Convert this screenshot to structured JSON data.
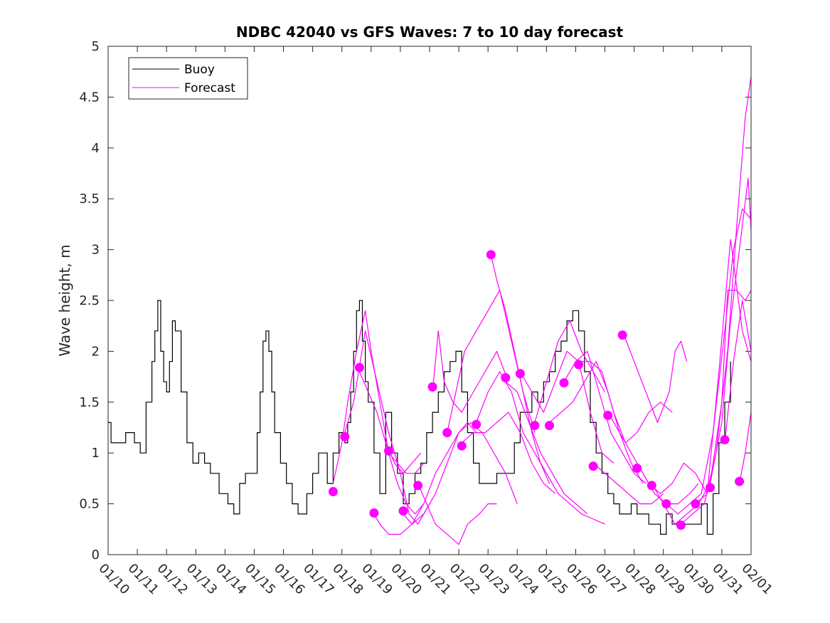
{
  "chart_data": {
    "type": "line",
    "title": "NDBC 42040 vs GFS Waves: 7 to 10 day forecast",
    "xlabel": "",
    "ylabel": "Wave height, m",
    "xlim": [
      0,
      22
    ],
    "ylim": [
      0,
      5
    ],
    "yticks": [
      0,
      0.5,
      1,
      1.5,
      2,
      2.5,
      3,
      3.5,
      4,
      4.5,
      5
    ],
    "ytick_labels": [
      "0",
      "0.5",
      "1",
      "1.5",
      "2",
      "2.5",
      "3",
      "3.5",
      "4",
      "4.5",
      "5"
    ],
    "xticks": [
      0,
      1,
      2,
      3,
      4,
      5,
      6,
      7,
      8,
      9,
      10,
      11,
      12,
      13,
      14,
      15,
      16,
      17,
      18,
      19,
      20,
      21,
      22
    ],
    "xtick_labels": [
      "01/10",
      "01/11",
      "01/12",
      "01/13",
      "01/14",
      "01/15",
      "01/16",
      "01/17",
      "01/18",
      "01/19",
      "01/20",
      "01/21",
      "01/22",
      "01/23",
      "01/24",
      "01/25",
      "01/26",
      "01/27",
      "01/28",
      "01/29",
      "01/30",
      "01/31",
      "02/01"
    ],
    "legend": {
      "location": "top-left",
      "entries": [
        {
          "label": "Buoy",
          "color": "#000000"
        },
        {
          "label": "Forecast",
          "color": "#ff00ff"
        }
      ]
    },
    "colors": {
      "buoy": "#000000",
      "forecast": "#ff00ff"
    },
    "buoy": {
      "name": "Buoy",
      "x": [
        0,
        0.1,
        0.3,
        0.6,
        0.9,
        1.1,
        1.3,
        1.5,
        1.6,
        1.7,
        1.8,
        1.9,
        2.0,
        2.1,
        2.2,
        2.3,
        2.5,
        2.7,
        2.9,
        3.1,
        3.3,
        3.5,
        3.8,
        4.1,
        4.3,
        4.5,
        4.7,
        4.9,
        5.1,
        5.2,
        5.3,
        5.4,
        5.5,
        5.6,
        5.7,
        5.9,
        6.1,
        6.3,
        6.5,
        6.8,
        7.0,
        7.2,
        7.5,
        7.7,
        7.9,
        8.1,
        8.2,
        8.3,
        8.4,
        8.5,
        8.6,
        8.7,
        8.8,
        8.9,
        9.1,
        9.3,
        9.5,
        9.7,
        9.9,
        10.1,
        10.3,
        10.5,
        10.7,
        10.9,
        11.1,
        11.3,
        11.5,
        11.7,
        11.9,
        12.1,
        12.3,
        12.5,
        12.7,
        12.9,
        13.1,
        13.3,
        13.5,
        13.7,
        13.9,
        14.1,
        14.3,
        14.5,
        14.7,
        14.9,
        15.1,
        15.3,
        15.5,
        15.7,
        15.9,
        16.1,
        16.3,
        16.5,
        16.7,
        16.9,
        17.1,
        17.3,
        17.5,
        17.7,
        17.9,
        18.1,
        18.3,
        18.5,
        18.7,
        18.9,
        19.1,
        19.3,
        19.5,
        19.7,
        19.9,
        20.1,
        20.3,
        20.5,
        20.7,
        20.9,
        21.1,
        21.3
      ],
      "y": [
        1.3,
        1.1,
        1.1,
        1.2,
        1.1,
        1.0,
        1.5,
        1.9,
        2.2,
        2.5,
        2.0,
        1.7,
        1.6,
        1.9,
        2.3,
        2.2,
        1.6,
        1.1,
        0.9,
        1.0,
        0.9,
        0.8,
        0.6,
        0.5,
        0.4,
        0.7,
        0.8,
        0.8,
        1.2,
        1.6,
        2.1,
        2.2,
        2.0,
        1.6,
        1.2,
        0.9,
        0.7,
        0.5,
        0.4,
        0.6,
        0.8,
        1.0,
        0.7,
        1.0,
        1.2,
        1.1,
        1.3,
        1.6,
        2.0,
        2.4,
        2.5,
        2.1,
        1.7,
        1.5,
        1.0,
        0.6,
        1.4,
        1.0,
        0.8,
        0.5,
        0.6,
        0.8,
        0.9,
        1.2,
        1.4,
        1.6,
        1.8,
        1.9,
        2.0,
        1.6,
        1.2,
        0.9,
        0.7,
        0.7,
        0.7,
        0.8,
        0.8,
        0.8,
        1.1,
        1.4,
        1.4,
        1.6,
        1.5,
        1.7,
        1.8,
        2.0,
        2.1,
        2.3,
        2.4,
        2.2,
        1.8,
        1.3,
        1.0,
        0.8,
        0.6,
        0.5,
        0.4,
        0.4,
        0.5,
        0.4,
        0.4,
        0.3,
        0.3,
        0.2,
        0.4,
        0.3,
        0.3,
        0.3,
        0.3,
        0.3,
        0.5,
        0.2,
        0.6,
        1.1,
        1.5,
        1.9
      ]
    },
    "forecast_series": [
      {
        "name": "Forecast",
        "x": [
          7.7,
          8.0,
          8.2,
          8.5,
          8.8,
          9.0,
          9.3,
          9.6,
          9.9,
          10.2,
          10.5,
          10.8
        ],
        "y": [
          0.7,
          1.1,
          1.5,
          2.0,
          2.4,
          2.0,
          1.5,
          1.0,
          0.7,
          0.5,
          0.4,
          0.5
        ]
      },
      {
        "name": "Forecast",
        "x": [
          8.1,
          8.4,
          8.8,
          9.2,
          9.6,
          10.0,
          10.3,
          10.6,
          11.0
        ],
        "y": [
          1.2,
          1.5,
          2.2,
          1.7,
          1.2,
          0.8,
          0.4,
          0.3,
          0.5
        ]
      },
      {
        "name": "Forecast",
        "x": [
          8.6,
          8.9,
          9.2,
          9.5,
          9.8,
          10.1,
          10.4,
          10.7
        ],
        "y": [
          1.8,
          1.6,
          1.4,
          1.1,
          0.9,
          0.8,
          0.9,
          1.0
        ]
      },
      {
        "name": "Forecast",
        "x": [
          9.1,
          9.3,
          9.6,
          10.0,
          10.4,
          10.8,
          11.2,
          11.6,
          12.0,
          12.3,
          12.6
        ],
        "y": [
          0.4,
          0.3,
          0.2,
          0.2,
          0.3,
          0.5,
          0.8,
          1.0,
          1.2,
          1.3,
          1.2
        ]
      },
      {
        "name": "Forecast",
        "x": [
          9.6,
          9.9,
          10.2,
          10.5,
          10.8
        ],
        "y": [
          1.0,
          0.9,
          0.8,
          0.8,
          0.9
        ]
      },
      {
        "name": "Forecast",
        "x": [
          10.1,
          10.4,
          10.8,
          11.2,
          11.6,
          12.0,
          12.4,
          12.8,
          13.2,
          13.6,
          14.0
        ],
        "y": [
          0.4,
          0.3,
          0.4,
          0.6,
          0.9,
          1.2,
          1.3,
          1.2,
          1.0,
          0.8,
          0.5
        ]
      },
      {
        "name": "Forecast",
        "x": [
          10.6,
          10.9,
          11.2,
          11.6,
          12.0,
          12.3,
          12.7,
          13.0,
          13.3
        ],
        "y": [
          0.7,
          0.5,
          0.3,
          0.2,
          0.1,
          0.3,
          0.4,
          0.5,
          0.5
        ]
      },
      {
        "name": "Forecast",
        "x": [
          11.1,
          11.3,
          11.5,
          11.8,
          12.1,
          12.5,
          12.9,
          13.3,
          13.7
        ],
        "y": [
          1.6,
          2.2,
          1.7,
          1.5,
          1.4,
          1.6,
          1.8,
          2.0,
          1.7
        ]
      },
      {
        "name": "Forecast",
        "x": [
          11.6,
          11.9,
          12.2,
          12.6,
          13.0,
          13.4,
          13.8,
          14.2,
          14.6
        ],
        "y": [
          1.2,
          1.6,
          2.0,
          2.2,
          2.4,
          2.6,
          2.1,
          1.6,
          1.2
        ]
      },
      {
        "name": "Forecast",
        "x": [
          12.1,
          12.5,
          12.9,
          13.3,
          13.7,
          14.1,
          14.5,
          14.9,
          15.3
        ],
        "y": [
          1.1,
          1.2,
          1.2,
          1.3,
          1.4,
          1.2,
          0.9,
          0.7,
          0.6
        ]
      },
      {
        "name": "Forecast",
        "x": [
          12.6,
          13.0,
          13.4,
          13.8,
          14.2,
          14.6,
          15.0,
          15.4,
          15.8,
          16.2,
          16.6,
          17.0
        ],
        "y": [
          1.3,
          1.6,
          1.8,
          1.6,
          1.2,
          1.0,
          0.8,
          0.6,
          0.5,
          0.4,
          0.35,
          0.3
        ]
      },
      {
        "name": "Forecast",
        "x": [
          13.1,
          13.3,
          13.6,
          13.9,
          14.2,
          14.5,
          14.8,
          15.1
        ],
        "y": [
          2.95,
          2.7,
          2.4,
          2.0,
          1.6,
          1.2,
          0.9,
          0.7
        ]
      },
      {
        "name": "Forecast",
        "x": [
          13.6,
          14.0,
          14.4,
          14.8,
          15.2,
          15.6,
          16.0,
          16.4
        ],
        "y": [
          1.7,
          1.6,
          1.3,
          1.0,
          0.8,
          0.6,
          0.5,
          0.4
        ]
      },
      {
        "name": "Forecast",
        "x": [
          14.1,
          14.5,
          14.9,
          15.3,
          15.7,
          16.1,
          16.5,
          16.9,
          17.3
        ],
        "y": [
          1.8,
          1.6,
          1.4,
          1.7,
          2.0,
          1.9,
          1.4,
          1.0,
          0.9
        ]
      },
      {
        "name": "Forecast",
        "x": [
          14.6,
          15.0,
          15.4,
          15.8,
          16.2,
          16.6,
          17.0
        ],
        "y": [
          1.3,
          1.7,
          2.1,
          2.3,
          2.0,
          1.8,
          1.6
        ]
      },
      {
        "name": "Forecast",
        "x": [
          15.1,
          15.5,
          15.9,
          16.3,
          16.7,
          17.1,
          17.5,
          17.9,
          18.3
        ],
        "y": [
          1.3,
          1.4,
          1.5,
          1.7,
          1.9,
          1.6,
          1.2,
          0.9,
          0.7
        ]
      },
      {
        "name": "Forecast",
        "x": [
          15.6,
          16.0,
          16.4,
          16.8,
          17.2,
          17.6,
          18.0,
          18.4
        ],
        "y": [
          1.7,
          1.9,
          2.0,
          1.6,
          1.2,
          1.0,
          0.8,
          0.7
        ]
      },
      {
        "name": "Forecast",
        "x": [
          16.1,
          16.5,
          16.9,
          17.3,
          17.7,
          18.1,
          18.5,
          18.9,
          19.3
        ],
        "y": [
          1.9,
          1.9,
          1.8,
          1.4,
          1.1,
          1.2,
          1.4,
          1.5,
          1.4
        ]
      },
      {
        "name": "Forecast",
        "x": [
          16.6,
          17.0,
          17.4,
          17.8,
          18.2,
          18.6,
          19.0
        ],
        "y": [
          0.9,
          0.8,
          0.7,
          0.6,
          0.5,
          0.5,
          0.6
        ]
      },
      {
        "name": "Forecast",
        "x": [
          17.1,
          17.5,
          17.9,
          18.3,
          18.7,
          19.1,
          19.5,
          19.9,
          20.2
        ],
        "y": [
          1.4,
          1.2,
          1.0,
          0.8,
          0.6,
          0.5,
          0.5,
          0.6,
          0.7
        ]
      },
      {
        "name": "Forecast",
        "x": [
          17.6,
          18.0,
          18.4,
          18.8,
          19.2,
          19.4,
          19.6,
          19.8
        ],
        "y": [
          2.2,
          1.9,
          1.6,
          1.3,
          1.6,
          2.0,
          2.1,
          1.9
        ]
      },
      {
        "name": "Forecast",
        "x": [
          18.1,
          18.5,
          18.9,
          19.3,
          19.7,
          20.1,
          20.5
        ],
        "y": [
          0.9,
          0.7,
          0.6,
          0.7,
          0.9,
          0.8,
          0.6
        ]
      },
      {
        "name": "Forecast",
        "x": [
          18.6,
          19.0,
          19.4,
          19.8,
          20.2,
          20.6,
          21.0,
          21.2,
          21.5,
          21.8,
          22.0
        ],
        "y": [
          0.7,
          0.5,
          0.3,
          0.4,
          0.5,
          0.7,
          1.5,
          2.6,
          2.6,
          2.5,
          2.6
        ]
      },
      {
        "name": "Forecast",
        "x": [
          19.1,
          19.5,
          19.9,
          20.3,
          20.7,
          21.1,
          21.4,
          21.7,
          22.0
        ],
        "y": [
          0.5,
          0.4,
          0.5,
          0.6,
          1.2,
          2.2,
          3.0,
          3.4,
          3.3
        ]
      },
      {
        "name": "Forecast",
        "x": [
          19.6,
          20.0,
          20.4,
          20.8,
          21.2,
          21.5,
          21.8,
          22.0
        ],
        "y": [
          0.3,
          0.4,
          0.5,
          1.0,
          2.0,
          3.2,
          4.3,
          4.7
        ]
      },
      {
        "name": "Forecast",
        "x": [
          20.1,
          20.5,
          20.9,
          21.3,
          21.7,
          22.0
        ],
        "y": [
          0.5,
          0.6,
          1.8,
          3.1,
          2.2,
          1.9
        ]
      },
      {
        "name": "Forecast",
        "x": [
          20.6,
          21.0,
          21.3,
          21.6,
          21.9,
          22.0
        ],
        "y": [
          0.7,
          1.3,
          2.3,
          3.0,
          3.7,
          3.2
        ]
      },
      {
        "name": "Forecast",
        "x": [
          21.1,
          21.4,
          21.7,
          22.0
        ],
        "y": [
          1.1,
          1.9,
          2.5,
          2.0
        ]
      },
      {
        "name": "Forecast",
        "x": [
          21.6,
          21.8,
          22.0
        ],
        "y": [
          0.7,
          1.0,
          1.4
        ]
      }
    ],
    "forecast_markers": {
      "x": [
        7.7,
        8.1,
        8.6,
        9.1,
        9.6,
        10.1,
        10.6,
        11.1,
        11.6,
        12.1,
        12.6,
        13.1,
        13.6,
        14.1,
        14.6,
        15.1,
        15.6,
        16.1,
        16.6,
        17.1,
        17.6,
        18.1,
        18.6,
        19.1,
        19.6,
        20.1,
        20.6,
        21.1,
        21.6
      ],
      "y": [
        0.62,
        1.16,
        1.84,
        0.41,
        1.02,
        0.43,
        0.68,
        1.65,
        1.2,
        1.07,
        1.28,
        2.95,
        1.74,
        1.78,
        1.27,
        1.27,
        1.69,
        1.87,
        0.87,
        1.37,
        2.16,
        0.85,
        0.68,
        0.5,
        0.29,
        0.5,
        0.66,
        1.13,
        0.72
      ]
    }
  }
}
